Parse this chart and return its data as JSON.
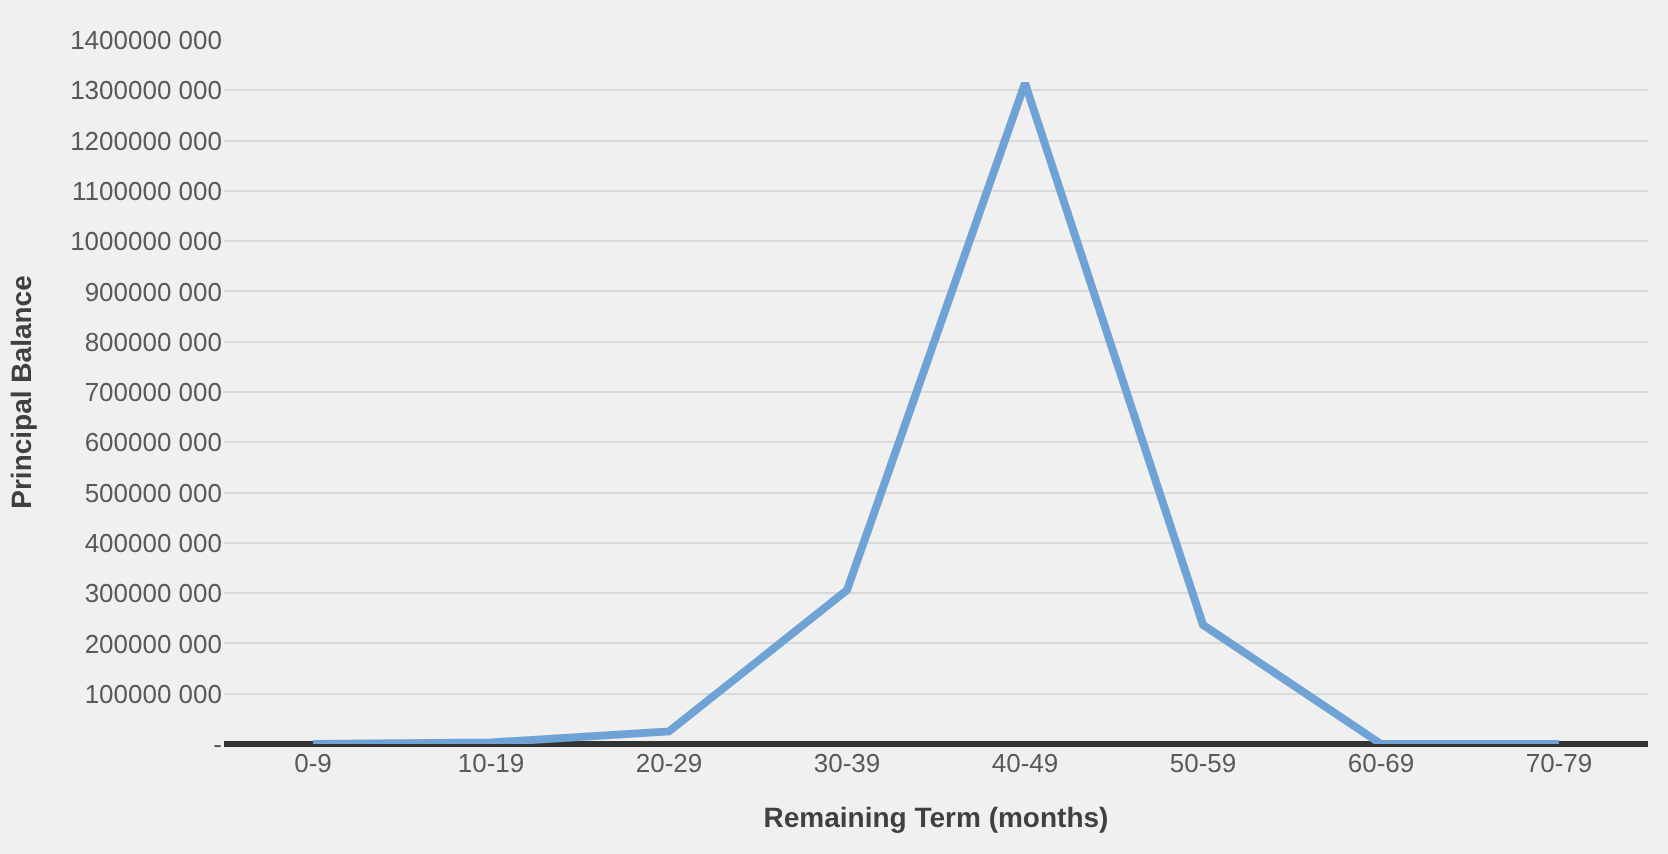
{
  "chart_data": {
    "type": "line",
    "xlabel": "Remaining Term (months)",
    "ylabel": "Principal Balance",
    "categories": [
      "0-9",
      "10-19",
      "20-29",
      "30-39",
      "40-49",
      "50-59",
      "60-69",
      "70-79"
    ],
    "series": [
      {
        "color": "#6fa3d6",
        "values": [
          0,
          3000000,
          25000000,
          306000000,
          1314000000,
          237000000,
          0,
          0
        ]
      }
    ],
    "ylim": [
      0,
      1400000000
    ],
    "yticks": [
      {
        "value": 0,
        "label": "-"
      },
      {
        "value": 100000000,
        "label": "100000 000"
      },
      {
        "value": 200000000,
        "label": "200000 000"
      },
      {
        "value": 300000000,
        "label": "300000 000"
      },
      {
        "value": 400000000,
        "label": "400000 000"
      },
      {
        "value": 500000000,
        "label": "500000 000"
      },
      {
        "value": 600000000,
        "label": "600000 000"
      },
      {
        "value": 700000000,
        "label": "700000 000"
      },
      {
        "value": 800000000,
        "label": "800000 000"
      },
      {
        "value": 900000000,
        "label": "900000 000"
      },
      {
        "value": 1000000000,
        "label": "1000000 000"
      },
      {
        "value": 1100000000,
        "label": "1100000 000"
      },
      {
        "value": 1200000000,
        "label": "1200000 000"
      },
      {
        "value": 1300000000,
        "label": "1300000 000"
      },
      {
        "value": 1400000000,
        "label": "1400000 000"
      }
    ],
    "grid": "y",
    "marker": "none",
    "line_style": "solid"
  }
}
